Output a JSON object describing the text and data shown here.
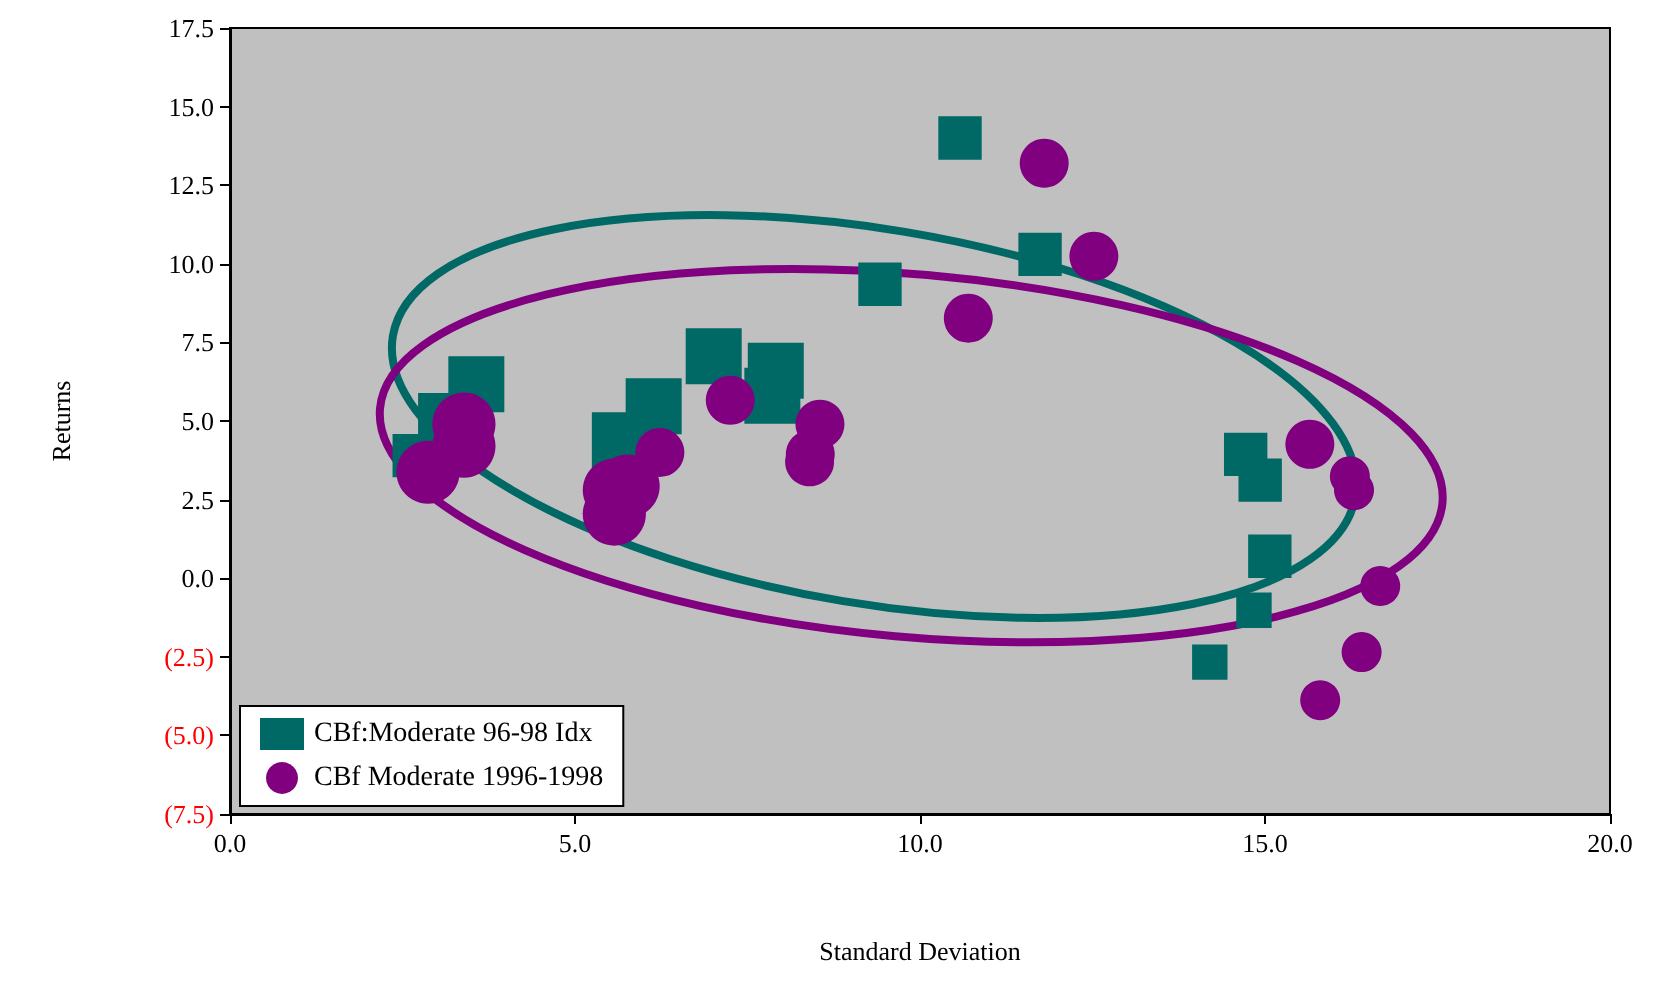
{
  "chart_data": {
    "type": "bubble",
    "xlabel": "Standard Deviation",
    "ylabel": "Returns",
    "xlim": [
      0,
      20
    ],
    "xticks": [
      {
        "value": 0,
        "label": "0.0"
      },
      {
        "value": 5,
        "label": "5.0"
      },
      {
        "value": 10,
        "label": "10.0"
      },
      {
        "value": 15,
        "label": "15.0"
      },
      {
        "value": 20,
        "label": "20.0"
      }
    ],
    "ylim": [
      -7.5,
      17.5
    ],
    "yticks": [
      {
        "value": -7.5,
        "label": "(7.5)"
      },
      {
        "value": -5,
        "label": "(5.0)"
      },
      {
        "value": -2.5,
        "label": "(2.5)"
      },
      {
        "value": 0,
        "label": "0.0"
      },
      {
        "value": 2.5,
        "label": "2.5"
      },
      {
        "value": 5,
        "label": "5.0"
      },
      {
        "value": 7.5,
        "label": "7.5"
      },
      {
        "value": 10,
        "label": "10.0"
      },
      {
        "value": 12.5,
        "label": "12.5"
      },
      {
        "value": 15,
        "label": "15.0"
      },
      {
        "value": 17.5,
        "label": "17.5"
      }
    ],
    "grid": false,
    "legend": "bottom left",
    "series": [
      {
        "name": "CBf:Moderate 96-98 Idx",
        "color": "#006966",
        "marker": "square",
        "x": [
          3.57,
          7.01,
          7.91,
          6.14,
          7.86,
          5.65,
          2.67,
          3.04,
          9.42,
          10.58,
          11.74,
          14.72,
          14.93,
          15.07,
          14.84,
          14.2
        ],
        "values": [
          6.17,
          7.06,
          6.6,
          5.47,
          5.8,
          4.39,
          3.9,
          5.2,
          9.35,
          14.0,
          10.3,
          3.94,
          3.12,
          0.7,
          -1.02,
          -2.67
        ],
        "sizes": [
          1,
          1,
          1,
          1,
          1,
          1,
          0.6,
          0.6,
          0.6,
          0.6,
          0.6,
          0.6,
          0.6,
          0.6,
          0.4,
          0.4
        ]
      },
      {
        "name": "CBf Moderate 1996-1998",
        "color": "#800080",
        "marker": "circle",
        "x": [
          3.39,
          2.87,
          5.77,
          5.57,
          3.39,
          5.57,
          6.23,
          7.25,
          8.55,
          8.41,
          8.4,
          11.8,
          12.52,
          10.7,
          15.65,
          16.23,
          16.29,
          16.67,
          16.4,
          15.8
        ],
        "values": [
          4.9,
          3.37,
          2.93,
          2.04,
          4.2,
          2.8,
          4.0,
          5.66,
          4.9,
          3.94,
          3.7,
          13.2,
          10.24,
          8.27,
          4.26,
          3.24,
          2.8,
          -0.25,
          -2.35,
          -3.88
        ],
        "sizes": [
          1,
          1,
          1,
          1,
          1,
          1,
          0.6,
          0.6,
          0.6,
          0.6,
          0.6,
          0.6,
          0.6,
          0.6,
          0.6,
          0.4,
          0.4,
          0.4,
          0.4,
          0.4
        ]
      }
    ]
  }
}
